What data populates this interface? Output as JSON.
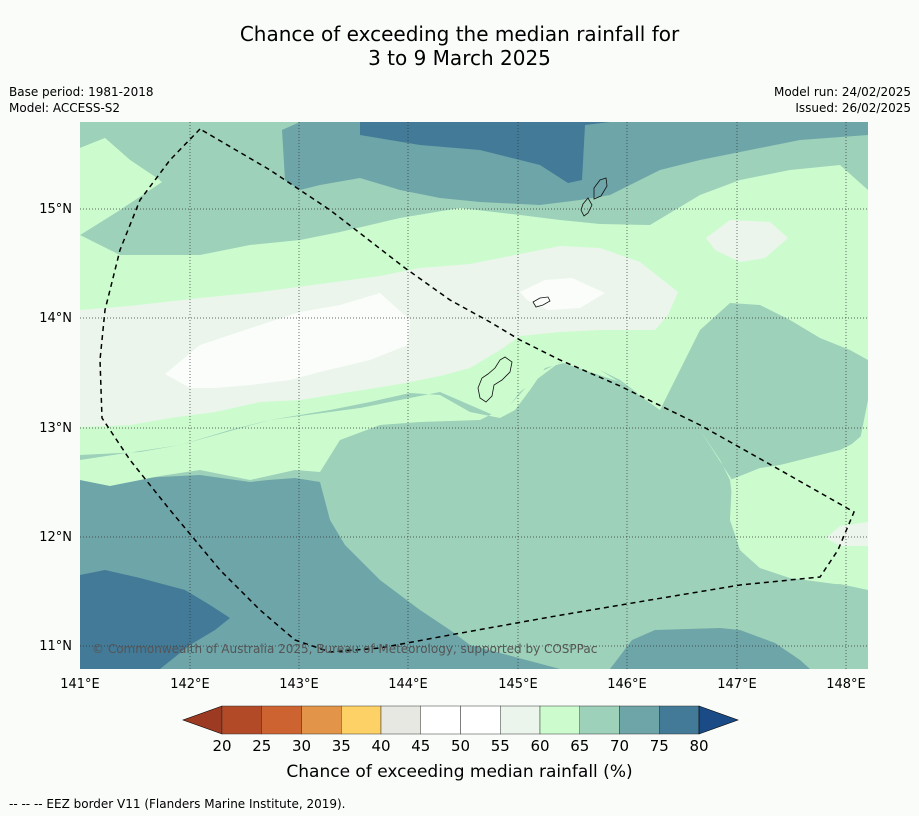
{
  "title": {
    "line1": "Chance of exceeding the median rainfall for",
    "line2": "3 to 9 March 2025"
  },
  "meta": {
    "base_period": "Base period: 1981-2018",
    "model": "Model: ACCESS-S2",
    "model_run": "Model run: 24/02/2025",
    "issued": "Issued: 26/02/2025"
  },
  "map": {
    "lon_ticks": [
      "141°E",
      "142°E",
      "143°E",
      "144°E",
      "145°E",
      "146°E",
      "147°E",
      "148°E"
    ],
    "lat_ticks": [
      "15°N",
      "14°N",
      "13°N",
      "12°N",
      "11°N"
    ],
    "copyright": "© Commonwealth of Australia 2025, Bureau of Meteorology, supported by COSPPac",
    "category_colors": {
      "45-55": "#fbfdfb",
      "55-60": "#ebf5ec",
      "60-65": "#ccfcce",
      "65-70": "#9dd1b9",
      "70-75": "#6ea5a8",
      "75-80": "#427a98"
    }
  },
  "colorbar": {
    "ticks": [
      "20",
      "25",
      "30",
      "35",
      "40",
      "45",
      "50",
      "55",
      "60",
      "65",
      "70",
      "75",
      "80"
    ],
    "colors": [
      "#b24a28",
      "#cc6330",
      "#e29548",
      "#fdd166",
      "#e8e8e3",
      "#ffffff",
      "#ffffff",
      "#ebf5ec",
      "#ccfcce",
      "#9dd1b9",
      "#6ea5a8",
      "#427a98"
    ],
    "under_color": "#9c3a22",
    "over_color": "#1a4b86",
    "label": "Chance of exceeding median rainfall (%)"
  },
  "footnote": "--  --  -- EEZ border V11 (Flanders Marine Institute, 2019)."
}
